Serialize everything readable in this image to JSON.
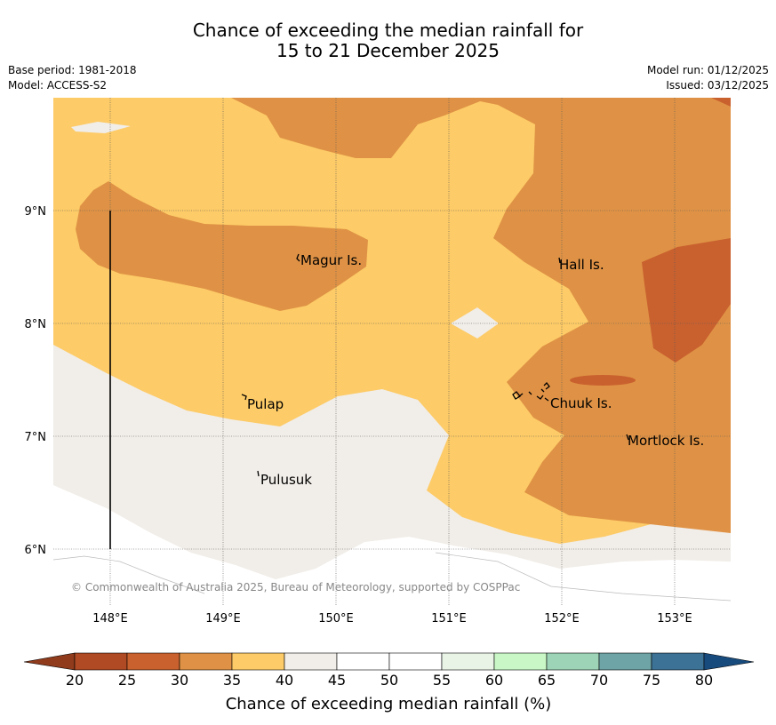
{
  "header": {
    "title_line1": "Chance of exceeding the median rainfall for",
    "title_line2": "15 to 21 December 2025",
    "base_period": "Base period: 1981-2018",
    "model": "Model: ACCESS-S2",
    "model_run": "Model run: 01/12/2025",
    "issued": "Issued: 03/12/2025"
  },
  "map": {
    "lat_labels": [
      "9°N",
      "8°N",
      "7°N",
      "6°N"
    ],
    "lon_labels": [
      "148°E",
      "149°E",
      "150°E",
      "151°E",
      "152°E",
      "153°E"
    ],
    "places": [
      "Magur Is.",
      "Hall Is.",
      "Pulap",
      "Chuuk Is.",
      "Mortlock Is.",
      "Pulusuk"
    ],
    "copyright": "© Commonwealth of Australia 2025, Bureau of Meteorology, supported by COSPPac"
  },
  "colorbar": {
    "label": "Chance of exceeding median rainfall (%)",
    "ticks": [
      "20",
      "25",
      "30",
      "35",
      "40",
      "45",
      "50",
      "55",
      "60",
      "65",
      "70",
      "75",
      "80"
    ],
    "colors": {
      "below_20": "#8f3b1c",
      "c20_25": "#b04a24",
      "c25_30": "#c9612f",
      "c30_35": "#df9245",
      "c35_40": "#fdcb67",
      "c40_45": "#f1ede8",
      "c45_50": "#ffffff",
      "c50_55": "#ffffff",
      "c55_60": "#e9f4e7",
      "c60_65": "#c9f8c6",
      "c65_70": "#9dd3b7",
      "c70_75": "#6ea4a6",
      "c75_80": "#3c7295",
      "above_80": "#184b7d"
    }
  }
}
